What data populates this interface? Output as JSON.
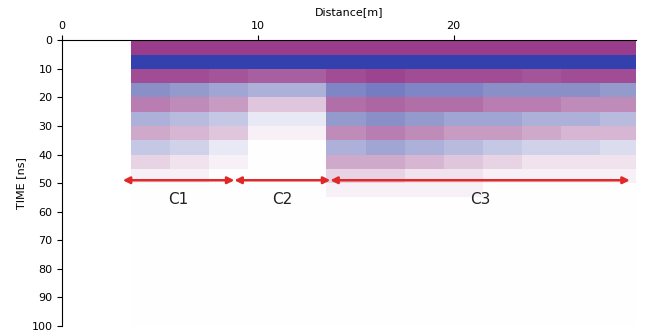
{
  "chart_data": {
    "type": "heatmap",
    "xlabel": "Distance[m]",
    "ylabel": "TIME [ns]",
    "xlim": [
      0,
      29.3
    ],
    "ylim": [
      100,
      0
    ],
    "xticks": [
      0,
      10,
      20
    ],
    "yticks": [
      0,
      10,
      20,
      30,
      40,
      50,
      60,
      70,
      80,
      90,
      100
    ],
    "x_edges": [
      3.5,
      5.5,
      7.5,
      9.5,
      11.5,
      13.5,
      15.5,
      17.5,
      19.5,
      21.5,
      23.5,
      25.5,
      27.5,
      29.5
    ],
    "y_edges": [
      0,
      5,
      10,
      15,
      20,
      25,
      30,
      35,
      40,
      45,
      50,
      55,
      60,
      65,
      70,
      75,
      80,
      85,
      90,
      95,
      100
    ],
    "clim": [
      -1,
      1
    ],
    "cells": [
      [
        0.8,
        0.8,
        0.8,
        0.8,
        0.8,
        0.8,
        0.8,
        0.8,
        0.8,
        0.8,
        0.8,
        0.8,
        0.8
      ],
      [
        -0.9,
        -0.9,
        -0.9,
        -0.9,
        -0.9,
        -0.9,
        -0.9,
        -0.9,
        -0.9,
        -0.9,
        -0.9,
        -0.9,
        -0.9
      ],
      [
        0.7,
        0.7,
        0.65,
        0.6,
        0.6,
        0.7,
        0.75,
        0.7,
        0.7,
        0.7,
        0.65,
        0.7,
        0.7
      ],
      [
        -0.5,
        -0.45,
        -0.4,
        -0.35,
        -0.35,
        -0.55,
        -0.6,
        -0.55,
        -0.55,
        -0.5,
        -0.5,
        -0.5,
        -0.45
      ],
      [
        0.45,
        0.4,
        0.35,
        0.2,
        0.2,
        0.5,
        0.55,
        0.5,
        0.5,
        0.45,
        0.45,
        0.4,
        0.4
      ],
      [
        -0.35,
        -0.3,
        -0.25,
        -0.1,
        -0.1,
        -0.45,
        -0.5,
        -0.45,
        -0.4,
        -0.4,
        -0.35,
        -0.35,
        -0.3
      ],
      [
        0.3,
        0.25,
        0.2,
        0.05,
        0.05,
        0.4,
        0.45,
        0.4,
        0.35,
        0.35,
        0.3,
        0.25,
        0.25
      ],
      [
        -0.25,
        -0.2,
        -0.1,
        0,
        0,
        -0.35,
        -0.4,
        -0.35,
        -0.3,
        -0.25,
        -0.2,
        -0.2,
        -0.15
      ],
      [
        0.15,
        0.1,
        0.05,
        0,
        0,
        0.3,
        0.3,
        0.25,
        0.2,
        0.15,
        0.1,
        0.1,
        0.1
      ],
      [
        0.05,
        0.05,
        0,
        0,
        0,
        0.15,
        0.15,
        0.1,
        0.1,
        0.05,
        0.05,
        0.05,
        0.05
      ],
      [
        0,
        0,
        0,
        0,
        0,
        0.05,
        0.05,
        0.05,
        0.05,
        0,
        0,
        0,
        0
      ],
      [
        0,
        0,
        0,
        0,
        0,
        0,
        0,
        0,
        0,
        0,
        0,
        0,
        0
      ],
      [
        0,
        0,
        0,
        0,
        0,
        0,
        0,
        0,
        0,
        0,
        0,
        0,
        0
      ],
      [
        0,
        0,
        0,
        0,
        0,
        0,
        0,
        0,
        0,
        0,
        0,
        0,
        0
      ],
      [
        0,
        0,
        0,
        0,
        0,
        0,
        0,
        0,
        0,
        0,
        0,
        0,
        0
      ],
      [
        0,
        0,
        0,
        0,
        0,
        0,
        0,
        0,
        0,
        0,
        0,
        0,
        0
      ],
      [
        0,
        0,
        0,
        0,
        0,
        0,
        0,
        0,
        0,
        0,
        0,
        0,
        0
      ],
      [
        0,
        0,
        0,
        0,
        0,
        0,
        0,
        0,
        0,
        0,
        0,
        0,
        0
      ],
      [
        0,
        0,
        0,
        0,
        0,
        0,
        0,
        0,
        0,
        0,
        0,
        0,
        0
      ],
      [
        0,
        0,
        0,
        0,
        0,
        0,
        0,
        0,
        0,
        0,
        0,
        0,
        0
      ]
    ],
    "annotations": [
      {
        "text": "C1",
        "start": 3.1,
        "end": 8.8,
        "y": 49,
        "label_y": 53
      },
      {
        "text": "C2",
        "start": 8.8,
        "end": 13.7,
        "y": 49,
        "label_y": 53
      },
      {
        "text": "C3",
        "start": 13.7,
        "end": 29.0,
        "y": 49,
        "label_y": 53
      }
    ]
  }
}
